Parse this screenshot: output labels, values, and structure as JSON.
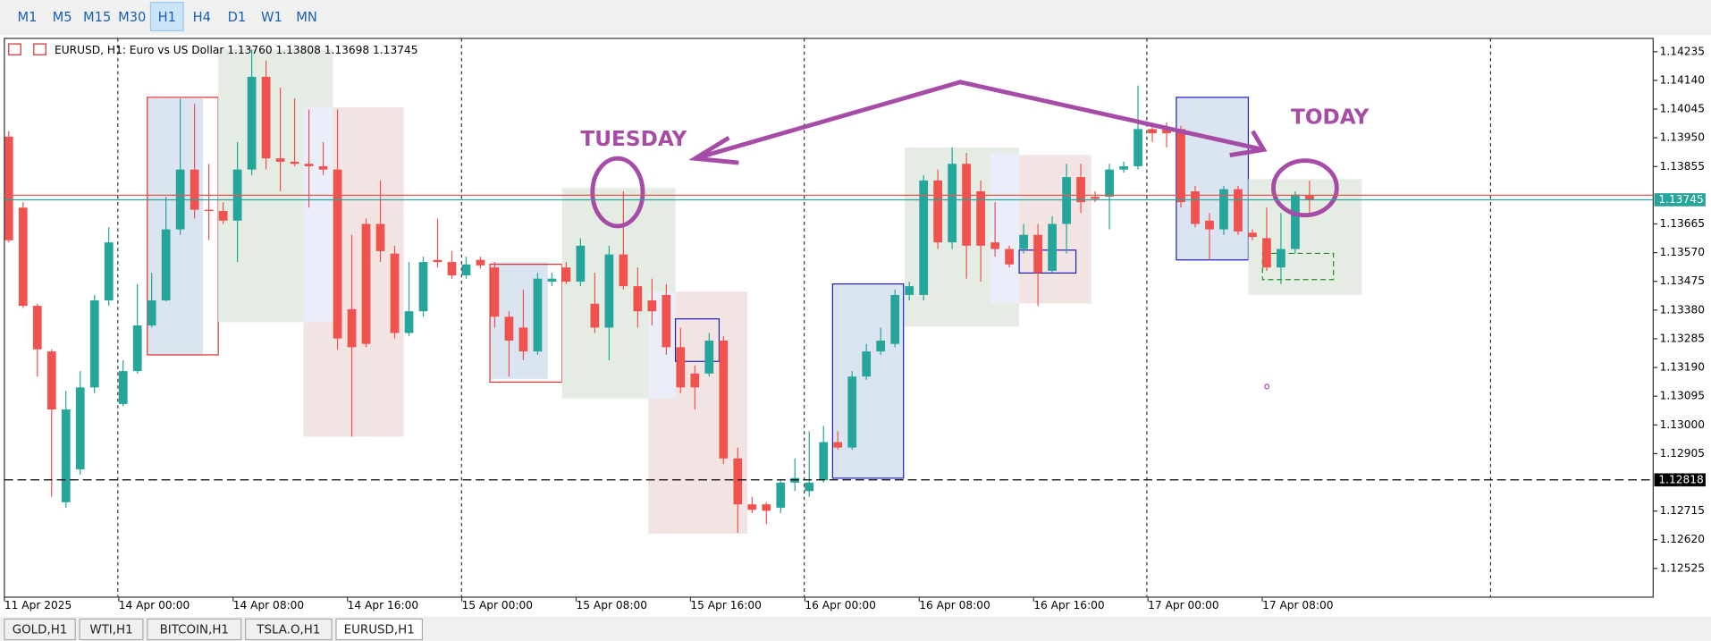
{
  "toolbar": {
    "timeframes": [
      "M1",
      "M5",
      "M15",
      "M30",
      "H1",
      "H4",
      "D1",
      "W1",
      "MN"
    ],
    "active": 4
  },
  "tabs": {
    "items": [
      "GOLD,H1",
      "WTI,H1",
      "BITCOIN,H1",
      "TSLA.O,H1",
      "EURUSD,H1"
    ],
    "active": 4
  },
  "chart_data": {
    "type": "candlestick",
    "title": "EURUSD, H1:  Euro vs US Dollar  1.13760 1.13808 1.13698 1.13745",
    "annotations": [
      "TUESDAY",
      "TODAY"
    ],
    "bull_color": "#26a69a",
    "bear_color": "#ef5350",
    "categories": [
      "11 Apr 2025",
      null,
      null,
      null,
      null,
      null,
      null,
      null,
      "14 Apr 00:00",
      null,
      null,
      null,
      null,
      null,
      null,
      null,
      "14 Apr 08:00",
      null,
      null,
      null,
      null,
      null,
      null,
      null,
      "14 Apr 16:00",
      null,
      null,
      null,
      null,
      null,
      null,
      null,
      "15 Apr 00:00",
      null,
      null,
      null,
      null,
      null,
      null,
      null,
      "15 Apr 08:00",
      null,
      null,
      null,
      null,
      null,
      null,
      null,
      "15 Apr 16:00",
      null,
      null,
      null,
      null,
      null,
      null,
      null,
      "16 Apr 00:00",
      null,
      null,
      null,
      null,
      null,
      null,
      null,
      "16 Apr 08:00",
      null,
      null,
      null,
      null,
      null,
      null,
      null,
      "16 Apr 16:00",
      null,
      null,
      null,
      null,
      null,
      null,
      null,
      "17 Apr 00:00",
      null,
      null,
      null,
      null,
      null,
      null,
      null,
      "17 Apr 08:00",
      null,
      null,
      null
    ],
    "open": [
      1.13954,
      1.13719,
      1.13394,
      1.13243,
      1.12744,
      1.12853,
      1.13124,
      1.13412,
      1.13069,
      1.13178,
      1.13329,
      1.13412,
      1.13647,
      1.13845,
      1.13712,
      1.13708,
      1.13676,
      1.13845,
      1.14152,
      1.13882,
      1.13871,
      1.13864,
      1.13856,
      1.13845,
      1.13383,
      1.13665,
      1.13665,
      1.13567,
      1.13304,
      1.13376,
      1.13546,
      1.13539,
      1.13495,
      1.13546,
      1.13521,
      1.13358,
      1.13322,
      1.13243,
      1.13474,
      1.13521,
      1.13474,
      1.13401,
      1.13322,
      1.13564,
      1.13459,
      1.13412,
      1.1343,
      1.13257,
      1.1317,
      1.1317,
      1.13279,
      1.12889,
      1.12737,
      1.12737,
      1.12726,
      1.12809,
      1.12781,
      1.12817,
      1.12943,
      1.12925,
      1.1316,
      1.13243,
      1.13268,
      1.1343,
      1.1343,
      1.13809,
      1.13604,
      1.13864,
      1.13773,
      1.13604,
      1.13582,
      1.13582,
      1.13629,
      1.1351,
      1.13665,
      1.1382,
      1.13755,
      1.13755,
      1.13845,
      1.13856,
      1.13979,
      1.13979,
      1.13979,
      1.13773,
      1.13676,
      1.13647,
      1.1378,
      1.13636,
      1.13618,
      1.13521,
      1.13582,
      1.1376
    ],
    "high": [
      1.13972,
      1.13737,
      1.13401,
      1.1325,
      1.13113,
      1.13178,
      1.1343,
      1.13654,
      1.13214,
      1.13466,
      1.13503,
      1.13755,
      1.1408,
      1.14062,
      1.13864,
      1.13737,
      1.13936,
      1.14243,
      1.14206,
      1.14116,
      1.1408,
      1.14044,
      1.13936,
      1.14044,
      1.13629,
      1.13683,
      1.13809,
      1.13593,
      1.13539,
      1.13557,
      1.13683,
      1.13575,
      1.13557,
      1.13557,
      1.13539,
      1.13376,
      1.13448,
      1.13503,
      1.13503,
      1.13539,
      1.13618,
      1.13503,
      1.13593,
      1.13773,
      1.13521,
      1.13484,
      1.13466,
      1.13322,
      1.13196,
      1.13304,
      1.13293,
      1.12925,
      1.12762,
      1.12744,
      1.12817,
      1.12889,
      1.12979,
      1.12997,
      1.12979,
      1.13178,
      1.13268,
      1.13322,
      1.13448,
      1.13474,
      1.13827,
      1.13845,
      1.13918,
      1.139,
      1.13809,
      1.13737,
      1.13593,
      1.13665,
      1.13665,
      1.1369,
      1.13864,
      1.13864,
      1.13773,
      1.13864,
      1.13871,
      1.14123,
      1.1399,
      1.14001,
      1.1399,
      1.13791,
      1.13701,
      1.13791,
      1.13791,
      1.13647,
      1.13719,
      1.13701,
      1.13773,
      1.13808
    ],
    "low": [
      1.13604,
      1.13387,
      1.1316,
      1.12762,
      1.12726,
      1.12835,
      1.13105,
      1.13394,
      1.13062,
      1.1317,
      1.13322,
      1.13409,
      1.13629,
      1.13683,
      1.13611,
      1.13665,
      1.13539,
      1.13827,
      1.13845,
      1.13773,
      1.13856,
      1.13719,
      1.13827,
      1.1325,
      1.12961,
      1.13257,
      1.13539,
      1.13286,
      1.13293,
      1.13358,
      1.13521,
      1.13484,
      1.13484,
      1.13517,
      1.13322,
      1.1316,
      1.13214,
      1.13232,
      1.13459,
      1.13466,
      1.13459,
      1.13304,
      1.13214,
      1.13448,
      1.13322,
      1.13329,
      1.13232,
      1.13105,
      1.13051,
      1.1316,
      1.12871,
      1.12643,
      1.12708,
      1.12672,
      1.12708,
      1.12781,
      1.12762,
      1.12809,
      1.12918,
      1.12918,
      1.13149,
      1.13232,
      1.13257,
      1.13412,
      1.13412,
      1.13582,
      1.13582,
      1.13484,
      1.13474,
      1.13557,
      1.13521,
      1.13567,
      1.13394,
      1.13503,
      1.13567,
      1.13701,
      1.13737,
      1.13647,
      1.13835,
      1.13845,
      1.13936,
      1.13918,
      1.13719,
      1.13654,
      1.13546,
      1.13629,
      1.13629,
      1.13611,
      1.1351,
      1.13466,
      1.13567,
      1.13698
    ],
    "close": [
      1.13611,
      1.13394,
      1.1325,
      1.13051,
      1.13051,
      1.13124,
      1.13412,
      1.13604,
      1.13178,
      1.13329,
      1.13412,
      1.13647,
      1.13845,
      1.13712,
      1.13708,
      1.13676,
      1.13845,
      1.14152,
      1.13882,
      1.13871,
      1.13864,
      1.13856,
      1.13845,
      1.13286,
      1.13257,
      1.13268,
      1.13575,
      1.13304,
      1.13376,
      1.13539,
      1.13539,
      1.13495,
      1.13531,
      1.13528,
      1.13358,
      1.13279,
      1.13243,
      1.13484,
      1.13484,
      1.13474,
      1.13593,
      1.13322,
      1.13564,
      1.13459,
      1.13376,
      1.13376,
      1.13257,
      1.13124,
      1.13124,
      1.13279,
      1.12889,
      1.12737,
      1.12719,
      1.12716,
      1.12809,
      1.12824,
      1.12809,
      1.12943,
      1.12925,
      1.1316,
      1.13243,
      1.13279,
      1.1343,
      1.13459,
      1.13809,
      1.13604,
      1.13864,
      1.13593,
      1.13593,
      1.13582,
      1.13531,
      1.13629,
      1.13503,
      1.13665,
      1.1382,
      1.13737,
      1.13748,
      1.13845,
      1.13856,
      1.13979,
      1.13965,
      1.13965,
      1.13737,
      1.13665,
      1.13647,
      1.1378,
      1.1364,
      1.13622,
      1.13521,
      1.13582,
      1.13762,
      1.13745
    ],
    "ylim": [
      1.1243,
      1.14279
    ],
    "yticks": [
      1.14235,
      {
        "value": 1.1414,
        "label": "1.14140"
      },
      1.14045,
      {
        "value": 1.1395,
        "label": "1.13950"
      },
      1.13855,
      1.13665,
      {
        "value": 1.1357,
        "label": "1.13570"
      },
      1.13475,
      {
        "value": 1.1338,
        "label": "1.13380"
      },
      1.13285,
      {
        "value": 1.1319,
        "label": "1.13190"
      },
      1.13095,
      {
        "value": 1.13,
        "label": "1.13000"
      },
      1.12905,
      1.12715,
      {
        "value": 1.1262,
        "label": "1.12620"
      },
      1.12525
    ],
    "ask_line": {
      "value": 1.1376,
      "color": "#ef5350"
    },
    "bid_line": {
      "value": 1.13745,
      "color": "#26a69a"
    },
    "level_line": {
      "value": 1.12818,
      "color": "#000000"
    }
  }
}
